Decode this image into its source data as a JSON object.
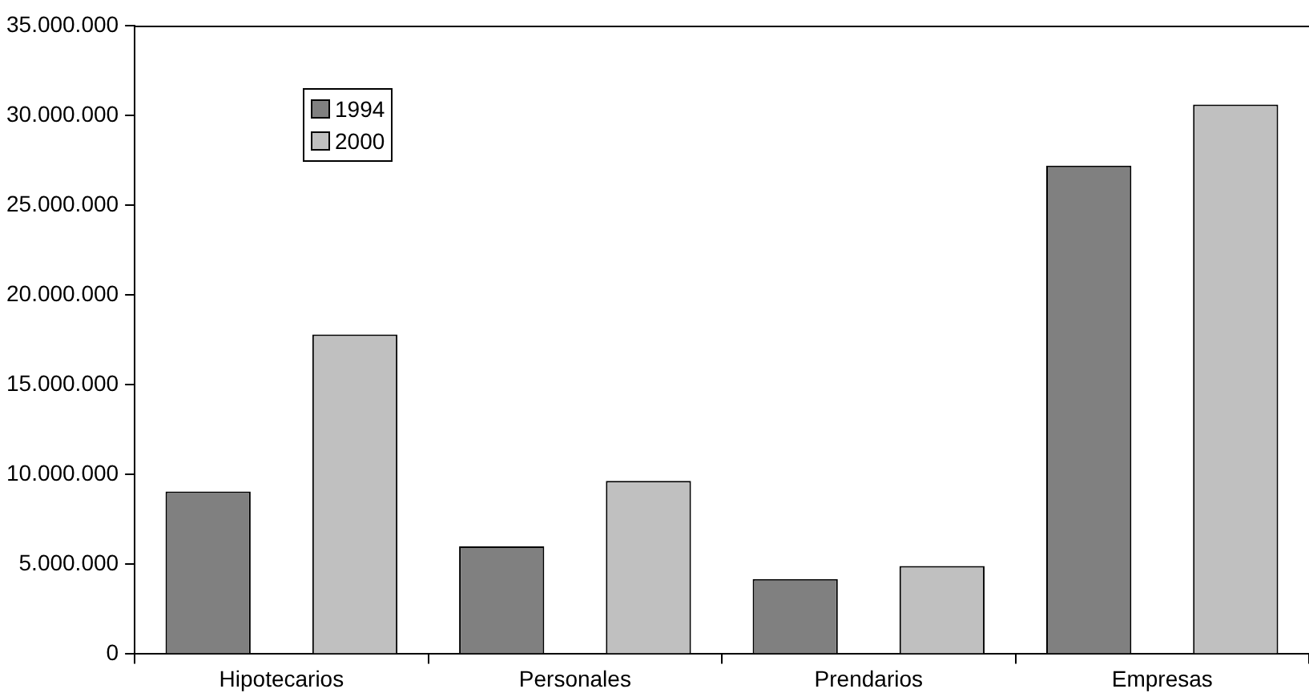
{
  "chart_data": {
    "type": "bar",
    "categories": [
      "Hipotecarios",
      "Personales",
      "Prendarios",
      "Empresas"
    ],
    "series": [
      {
        "name": "1994",
        "color": "#808080",
        "values": [
          9050000,
          6000000,
          4180000,
          27200000
        ]
      },
      {
        "name": "2000",
        "color": "#c0c0c0",
        "values": [
          17800000,
          9650000,
          4900000,
          30600000
        ]
      }
    ],
    "ylim": [
      0,
      35000000
    ],
    "yticks": [
      {
        "value": 0,
        "label": "0"
      },
      {
        "value": 5000000,
        "label": "5.000.000"
      },
      {
        "value": 10000000,
        "label": "10.000.000"
      },
      {
        "value": 15000000,
        "label": "15.000.000"
      },
      {
        "value": 20000000,
        "label": "20.000.000"
      },
      {
        "value": 25000000,
        "label": "25.000.000"
      },
      {
        "value": 30000000,
        "label": "30.000.000"
      },
      {
        "value": 35000000,
        "label": "35.000.000"
      }
    ],
    "grid": false,
    "legend": "top left"
  }
}
